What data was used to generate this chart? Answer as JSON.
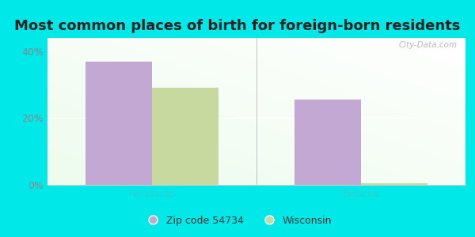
{
  "title": "Most common places of birth for foreign-born residents",
  "categories": [
    "Honduras",
    "Belarus"
  ],
  "zip_values": [
    37.0,
    25.5
  ],
  "state_values": [
    29.0,
    0.5
  ],
  "zip_color": "#c4a8d4",
  "state_color": "#c8d9a0",
  "zip_label": "Zip code 54734",
  "state_label": "Wisconsin",
  "xlabel_color": "#33cccc",
  "ylim": [
    0,
    44
  ],
  "yticks": [
    0,
    20,
    40
  ],
  "ytick_labels": [
    "0%",
    "20%",
    "40%"
  ],
  "background_outer": "#00e8e8",
  "title_fontsize": 13,
  "bar_width": 0.32,
  "watermark": "City-Data.com",
  "ytick_color": "#888888"
}
